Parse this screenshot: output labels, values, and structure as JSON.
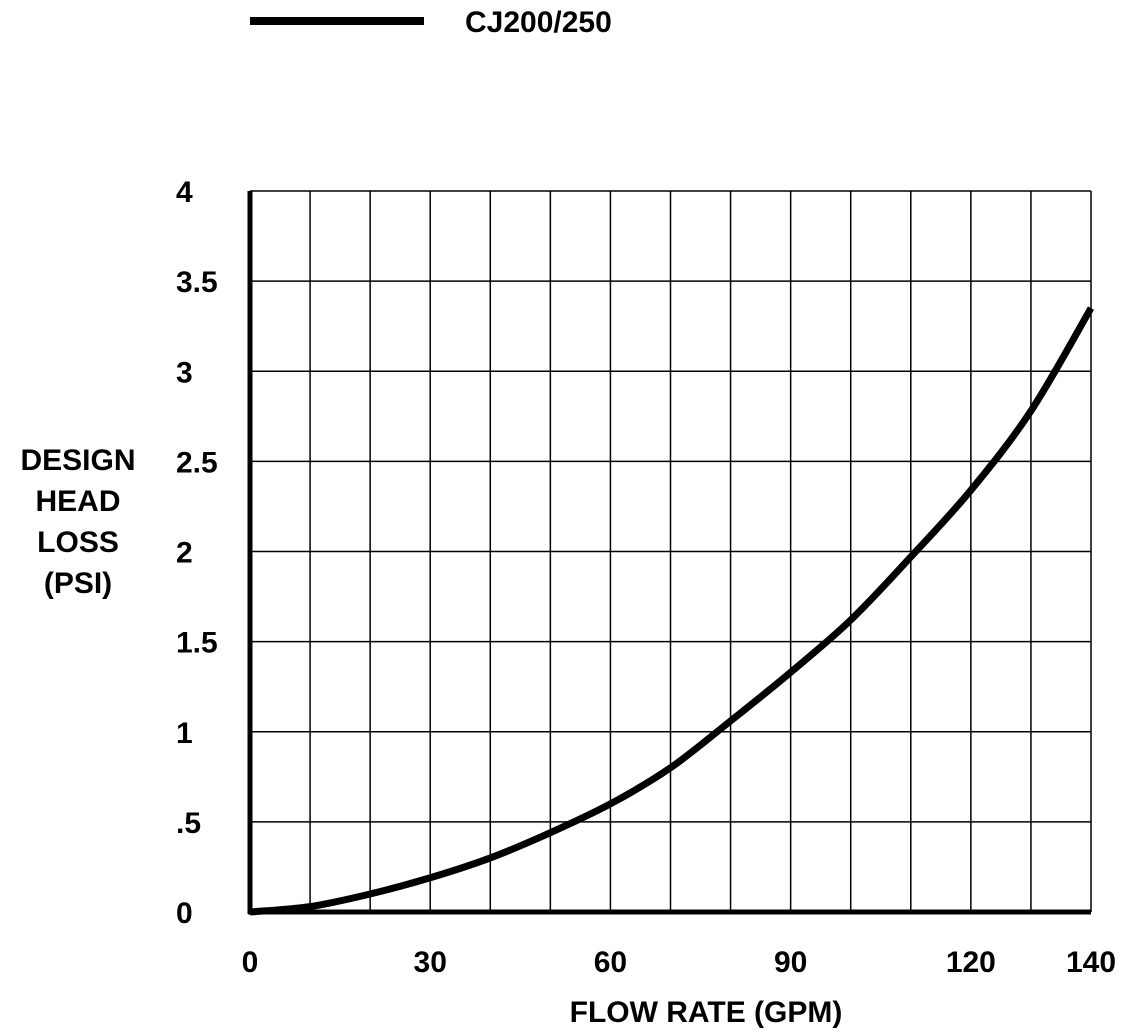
{
  "chart_data": {
    "type": "line",
    "title": "",
    "xlabel": "FLOW RATE (GPM)",
    "ylabel_lines": [
      "DESIGN",
      "HEAD",
      "LOSS",
      "(PSI)"
    ],
    "xlim": [
      0,
      140
    ],
    "ylim": [
      0,
      4
    ],
    "x_ticks": [
      0,
      30,
      60,
      90,
      120,
      140
    ],
    "x_tick_labels": [
      "0",
      "30",
      "60",
      "90",
      "120",
      "140"
    ],
    "x_grid_step": 10,
    "y_ticks": [
      0,
      0.5,
      1,
      1.5,
      2,
      2.5,
      3,
      3.5,
      4
    ],
    "y_tick_labels": [
      "0",
      ".5",
      "1",
      "1.5",
      "2",
      "2.5",
      "3",
      "3.5",
      "4"
    ],
    "grid": true,
    "legend_position": "top-left",
    "series": [
      {
        "name": "CJ200/250",
        "color": "#000000",
        "x": [
          0,
          10,
          20,
          30,
          40,
          50,
          60,
          70,
          80,
          90,
          100,
          110,
          120,
          130,
          140
        ],
        "y": [
          0,
          0.03,
          0.1,
          0.19,
          0.3,
          0.44,
          0.6,
          0.8,
          1.06,
          1.33,
          1.62,
          1.97,
          2.34,
          2.78,
          3.35
        ]
      }
    ]
  }
}
